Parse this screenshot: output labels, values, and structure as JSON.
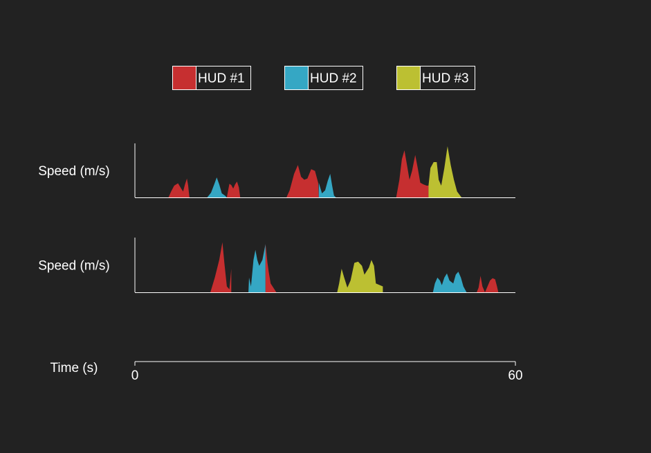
{
  "chart_data": {
    "type": "area",
    "legend": {
      "placement": "top-center",
      "items": [
        {
          "label": "HUD #1",
          "color": "#c62f30"
        },
        {
          "label": "HUD #2",
          "color": "#35a7c4"
        },
        {
          "label": "HUD #3",
          "color": "#bcc032"
        }
      ]
    },
    "xlabel": "Time (s)",
    "xlim": [
      0,
      60
    ],
    "x_ticks": [
      "0",
      "60"
    ],
    "panels": [
      {
        "ylabel": "Speed (m/s)",
        "ylim": [
          0,
          1
        ],
        "segments": [
          {
            "series": "HUD #1",
            "points": [
              [
                5.3,
                0
              ],
              [
                5.7,
                0.1
              ],
              [
                6.2,
                0.2
              ],
              [
                6.8,
                0.24
              ],
              [
                7.3,
                0.15
              ],
              [
                7.6,
                0.1
              ],
              [
                7.9,
                0.22
              ],
              [
                8.2,
                0.32
              ],
              [
                8.4,
                0.2
              ],
              [
                8.6,
                0
              ]
            ]
          },
          {
            "series": "HUD #1",
            "points": [
              [
                14.5,
                0
              ],
              [
                14.7,
                0.12
              ],
              [
                14.9,
                0.23
              ],
              [
                15.2,
                0.21
              ],
              [
                15.5,
                0.15
              ],
              [
                15.8,
                0.22
              ],
              [
                16.1,
                0.27
              ],
              [
                16.4,
                0.17
              ],
              [
                16.6,
                0
              ]
            ]
          },
          {
            "series": "HUD #2",
            "points": [
              [
                11.4,
                0
              ],
              [
                12.0,
                0.08
              ],
              [
                12.5,
                0.22
              ],
              [
                12.9,
                0.34
              ],
              [
                13.3,
                0.22
              ],
              [
                13.7,
                0.07
              ],
              [
                14.2,
                0.03
              ],
              [
                14.5,
                0
              ]
            ]
          },
          {
            "series": "HUD #1",
            "points": [
              [
                23.9,
                0
              ],
              [
                24.4,
                0.12
              ],
              [
                25.1,
                0.4
              ],
              [
                25.7,
                0.55
              ],
              [
                26.2,
                0.35
              ],
              [
                26.7,
                0.3
              ],
              [
                27.2,
                0.32
              ],
              [
                27.8,
                0.48
              ],
              [
                28.4,
                0.45
              ],
              [
                28.9,
                0.25
              ],
              [
                29.0,
                0
              ]
            ]
          },
          {
            "series": "HUD #2",
            "points": [
              [
                29.0,
                0
              ],
              [
                29.0,
                0.25
              ],
              [
                29.5,
                0.07
              ],
              [
                30.0,
                0.12
              ],
              [
                30.4,
                0.28
              ],
              [
                30.8,
                0.4
              ],
              [
                31.1,
                0.2
              ],
              [
                31.4,
                0.03
              ],
              [
                31.7,
                0
              ]
            ]
          },
          {
            "series": "HUD #1",
            "points": [
              [
                41.2,
                0
              ],
              [
                41.7,
                0.3
              ],
              [
                42.1,
                0.65
              ],
              [
                42.5,
                0.8
              ],
              [
                42.9,
                0.55
              ],
              [
                43.3,
                0.3
              ],
              [
                43.7,
                0.45
              ],
              [
                44.2,
                0.72
              ],
              [
                44.6,
                0.5
              ],
              [
                45.0,
                0.25
              ],
              [
                45.5,
                0.22
              ],
              [
                46.0,
                0.2
              ],
              [
                46.3,
                0.2
              ],
              [
                46.3,
                0
              ]
            ]
          },
          {
            "series": "HUD #3",
            "points": [
              [
                46.3,
                0
              ],
              [
                46.3,
                0.2
              ],
              [
                46.6,
                0.5
              ],
              [
                47.1,
                0.6
              ],
              [
                47.6,
                0.6
              ],
              [
                47.9,
                0.3
              ],
              [
                48.3,
                0.2
              ],
              [
                48.8,
                0.5
              ],
              [
                49.3,
                0.87
              ],
              [
                49.8,
                0.55
              ],
              [
                50.3,
                0.3
              ],
              [
                50.8,
                0.1
              ],
              [
                51.5,
                0
              ]
            ]
          }
        ]
      },
      {
        "ylabel": "Speed (m/s)",
        "ylim": [
          0,
          1
        ],
        "segments": [
          {
            "series": "HUD #1",
            "points": [
              [
                11.9,
                0
              ],
              [
                12.6,
                0.25
              ],
              [
                13.3,
                0.55
              ],
              [
                13.8,
                0.85
              ],
              [
                14.1,
                0.5
              ],
              [
                14.5,
                0.1
              ],
              [
                14.9,
                0.05
              ],
              [
                15.2,
                0.4
              ],
              [
                15.2,
                0
              ]
            ]
          },
          {
            "series": "HUD #2",
            "points": [
              [
                17.9,
                0
              ],
              [
                18.0,
                0.25
              ],
              [
                18.3,
                0.1
              ],
              [
                18.7,
                0.55
              ],
              [
                19.0,
                0.72
              ],
              [
                19.3,
                0.55
              ],
              [
                19.6,
                0.45
              ],
              [
                20.1,
                0.55
              ],
              [
                20.6,
                0.82
              ],
              [
                20.6,
                0
              ]
            ]
          },
          {
            "series": "HUD #1",
            "points": [
              [
                20.6,
                0
              ],
              [
                20.6,
                0.82
              ],
              [
                20.9,
                0.5
              ],
              [
                21.1,
                0.35
              ],
              [
                21.4,
                0.15
              ],
              [
                22.0,
                0.05
              ],
              [
                22.3,
                0
              ]
            ]
          },
          {
            "series": "HUD #3",
            "points": [
              [
                31.9,
                0
              ],
              [
                32.2,
                0.15
              ],
              [
                32.6,
                0.4
              ],
              [
                33.0,
                0.25
              ],
              [
                33.5,
                0.08
              ],
              [
                34.0,
                0.2
              ],
              [
                34.6,
                0.5
              ],
              [
                35.2,
                0.52
              ],
              [
                35.8,
                0.45
              ],
              [
                36.2,
                0.3
              ],
              [
                36.9,
                0.42
              ],
              [
                37.3,
                0.55
              ],
              [
                37.7,
                0.45
              ],
              [
                38.0,
                0.15
              ],
              [
                39.1,
                0.1
              ],
              [
                39.1,
                0
              ]
            ]
          },
          {
            "series": "HUD #2",
            "points": [
              [
                47.0,
                0
              ],
              [
                47.3,
                0.15
              ],
              [
                47.7,
                0.25
              ],
              [
                48.1,
                0.2
              ],
              [
                48.4,
                0.12
              ],
              [
                48.8,
                0.25
              ],
              [
                49.2,
                0.32
              ],
              [
                49.6,
                0.2
              ],
              [
                50.2,
                0.15
              ],
              [
                50.6,
                0.3
              ],
              [
                51.0,
                0.35
              ],
              [
                51.4,
                0.25
              ],
              [
                51.8,
                0.1
              ],
              [
                52.3,
                0
              ]
            ]
          },
          {
            "series": "HUD #2",
            "points": [
              [
                47.0,
                0
              ],
              [
                47.2,
                0.02
              ],
              [
                47.5,
                0.1
              ],
              [
                47.9,
                0.2
              ],
              [
                48.0,
                0
              ]
            ]
          },
          {
            "series": "HUD #1",
            "points": [
              [
                55.2,
                0
              ],
              [
                55.6,
                0.1
              ],
              [
                56.0,
                0.2
              ],
              [
                56.4,
                0.24
              ],
              [
                56.8,
                0.22
              ],
              [
                57.1,
                0.1
              ],
              [
                57.3,
                0
              ]
            ]
          },
          {
            "series": "HUD #1",
            "points": [
              [
                53.9,
                0
              ],
              [
                54.2,
                0.08
              ],
              [
                54.5,
                0.28
              ],
              [
                54.8,
                0.1
              ],
              [
                55.0,
                0.05
              ],
              [
                55.2,
                0
              ]
            ]
          }
        ]
      }
    ]
  }
}
